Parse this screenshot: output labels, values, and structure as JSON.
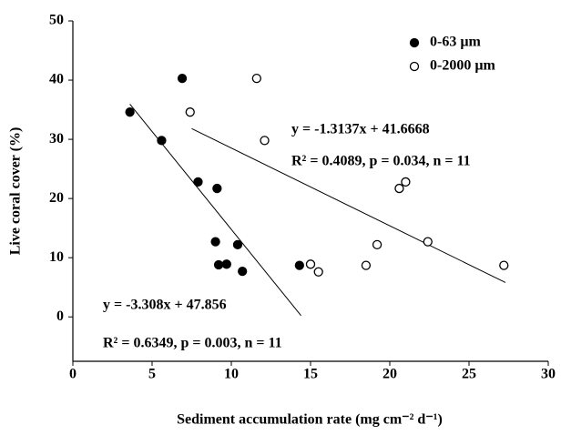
{
  "chart_data": {
    "type": "scatter",
    "x_label": "Sediment accumulation rate (mg cm⁻² d⁻¹)",
    "y_label": "Live coral cover (%)",
    "xlim": [
      0,
      30
    ],
    "xticks": [
      0,
      5,
      10,
      15,
      20,
      25,
      30
    ],
    "ylim": [
      -7.5,
      50
    ],
    "yticks": [
      0,
      10,
      20,
      30,
      40,
      50
    ],
    "legend": "top-right",
    "series": [
      {
        "name": "0-63 µm",
        "color": "#000000",
        "filled": true,
        "x": [
          3.6,
          5.6,
          6.9,
          7.9,
          9.1,
          9.0,
          9.2,
          9.7,
          10.4,
          10.7,
          14.3
        ],
        "values": [
          34.6,
          29.8,
          40.3,
          22.8,
          21.7,
          12.7,
          8.8,
          8.9,
          12.2,
          7.7,
          8.7
        ]
      },
      {
        "name": "0-2000 µm",
        "color": "#000000",
        "filled": false,
        "x": [
          7.4,
          11.6,
          12.1,
          15.0,
          15.5,
          18.5,
          19.2,
          20.6,
          21.0,
          22.4,
          27.2
        ],
        "values": [
          34.6,
          40.3,
          29.8,
          8.9,
          7.6,
          8.7,
          12.2,
          21.7,
          22.8,
          12.7,
          8.7
        ]
      }
    ],
    "trendlines": [
      {
        "equation": "y = -3.308x + 47.856",
        "stats": "R² = 0.6349, p = 0.003, n = 11",
        "slope": -3.308,
        "intercept": 47.856,
        "x_range": [
          3.6,
          14.4
        ]
      },
      {
        "equation": "y = -1.3137x + 41.6668",
        "stats": "R² = 0.4089, p = 0.034, n = 11",
        "slope": -1.3137,
        "intercept": 41.6668,
        "x_range": [
          7.5,
          27.3
        ]
      }
    ]
  }
}
